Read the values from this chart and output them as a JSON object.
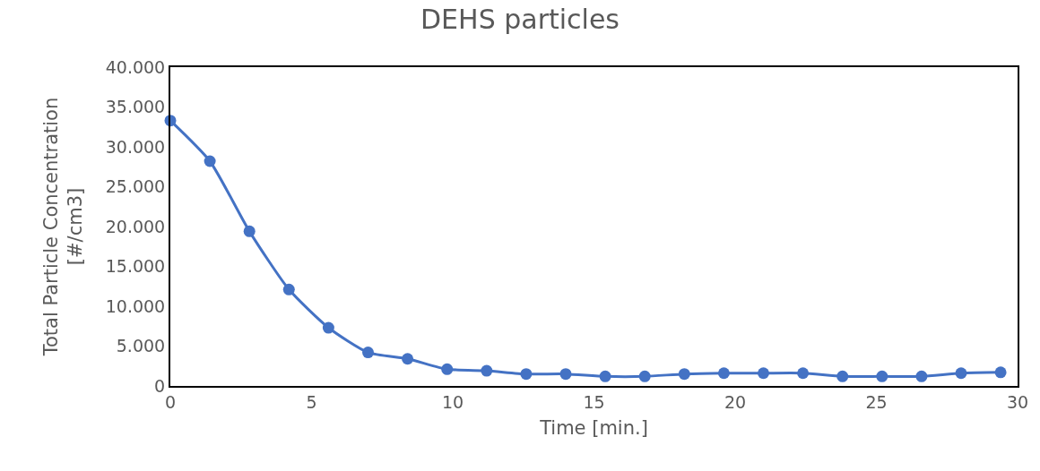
{
  "chart_data": {
    "type": "line",
    "title": "DEHS particles",
    "xlabel": "Time [min.]",
    "ylabel": "Total Particle Concentration\n[#/cm3]",
    "x": [
      0,
      1.4,
      2.8,
      4.2,
      5.6,
      7,
      8.4,
      9.8,
      11.2,
      12.6,
      14,
      15.4,
      16.8,
      18.2,
      19.6,
      21,
      22.4,
      23.8,
      25.2,
      26.6,
      28,
      29.4
    ],
    "series": [
      {
        "color": "#4472c4",
        "values": [
          33300,
          28200,
          19400,
          12100,
          7300,
          4200,
          3400,
          2100,
          1900,
          1500,
          1500,
          1200,
          1200,
          1500,
          1600,
          1600,
          1600,
          1200,
          1200,
          1200,
          1600,
          1700
        ]
      }
    ],
    "xlim": [
      0,
      30
    ],
    "xticks": [
      0,
      5,
      10,
      15,
      20,
      25,
      30
    ],
    "ylim": [
      0,
      40000
    ],
    "yticks": [
      0,
      {
        "value": 5000,
        "label": "5.000"
      },
      {
        "value": 10000,
        "label": "10.000"
      },
      {
        "value": 15000,
        "label": "15.000"
      },
      {
        "value": 20000,
        "label": "20.000"
      },
      {
        "value": 25000,
        "label": "25.000"
      },
      {
        "value": 30000,
        "label": "30.000"
      },
      {
        "value": 35000,
        "label": "35.000"
      },
      {
        "value": 40000,
        "label": "40.000"
      }
    ],
    "grid": false,
    "legend": false,
    "marker": "circle",
    "line_style": "solid"
  }
}
